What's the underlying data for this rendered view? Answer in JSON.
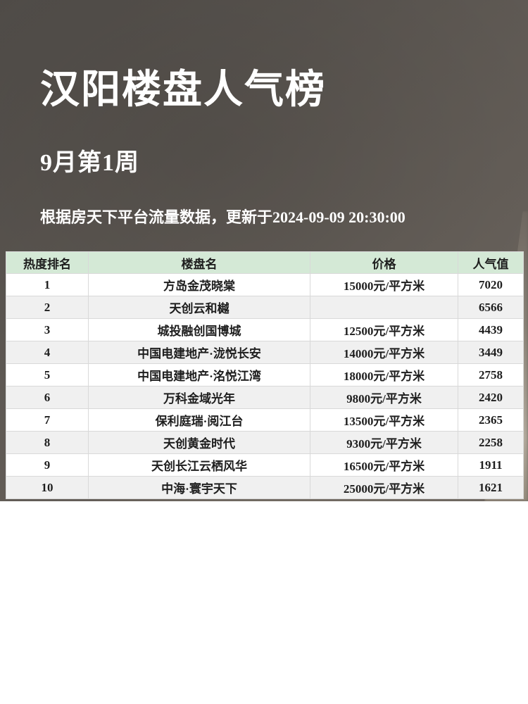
{
  "header": {
    "title": "汉阳楼盘人气榜",
    "subtitle": "9月第1周",
    "note": "根据房天下平台流量数据，更新于2024-09-09 20:30:00"
  },
  "chart_data": {
    "type": "table",
    "title": "汉阳楼盘人气榜",
    "subtitle": "9月第1周",
    "source_note": "根据房天下平台流量数据，更新于2024-09-09 20:30:00",
    "columns": [
      "热度排名",
      "楼盘名",
      "价格",
      "人气值"
    ],
    "rows": [
      {
        "rank": "1",
        "name": "方岛金茂晓棠",
        "price": "15000元/平方米",
        "popularity": "7020"
      },
      {
        "rank": "2",
        "name": "天创云和樾",
        "price": "",
        "popularity": "6566"
      },
      {
        "rank": "3",
        "name": "城投融创国博城",
        "price": "12500元/平方米",
        "popularity": "4439"
      },
      {
        "rank": "4",
        "name": "中国电建地产·泷悦长安",
        "price": "14000元/平方米",
        "popularity": "3449"
      },
      {
        "rank": "5",
        "name": "中国电建地产·洺悦江湾",
        "price": "18000元/平方米",
        "popularity": "2758"
      },
      {
        "rank": "6",
        "name": "万科金域光年",
        "price": "9800元/平方米",
        "popularity": "2420"
      },
      {
        "rank": "7",
        "name": "保利庭瑞·阅江台",
        "price": "13500元/平方米",
        "popularity": "2365"
      },
      {
        "rank": "8",
        "name": "天创黄金时代",
        "price": "9300元/平方米",
        "popularity": "2258"
      },
      {
        "rank": "9",
        "name": "天创长江云栖风华",
        "price": "16500元/平方米",
        "popularity": "1911"
      },
      {
        "rank": "10",
        "name": "中海·寰宇天下",
        "price": "25000元/平方米",
        "popularity": "1621"
      }
    ]
  },
  "colors": {
    "table_header_bg": "#d4e9d6",
    "row_alt_bg": "#f0f0f0",
    "title_color": "#ffffff",
    "photo_base": "#5d5853"
  }
}
